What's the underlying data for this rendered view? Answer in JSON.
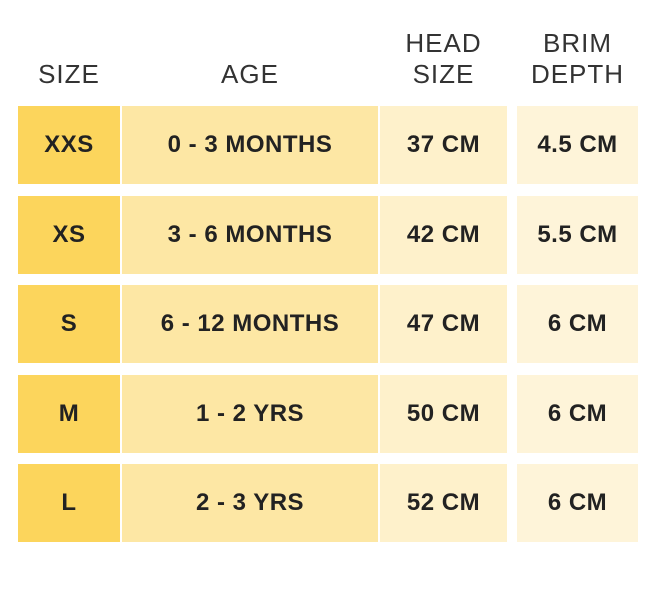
{
  "table": {
    "header": [
      [
        "SIZE"
      ],
      [
        "AGE"
      ],
      [
        "HEAD",
        "SIZE"
      ],
      [
        "BRIM",
        "DEPTH"
      ]
    ],
    "rows": [
      [
        "XXS",
        "0 - 3 MONTHS",
        "37 CM",
        "4.5 CM"
      ],
      [
        "XS",
        "3 - 6 MONTHS",
        "42 CM",
        "5.5 CM"
      ],
      [
        "S",
        "6 - 12 MONTHS",
        "47 CM",
        "6 CM"
      ],
      [
        "M",
        "1 - 2 YRS",
        "50 CM",
        "6 CM"
      ],
      [
        "L",
        "2 - 3 YRS",
        "52 CM",
        "6 CM"
      ]
    ]
  }
}
